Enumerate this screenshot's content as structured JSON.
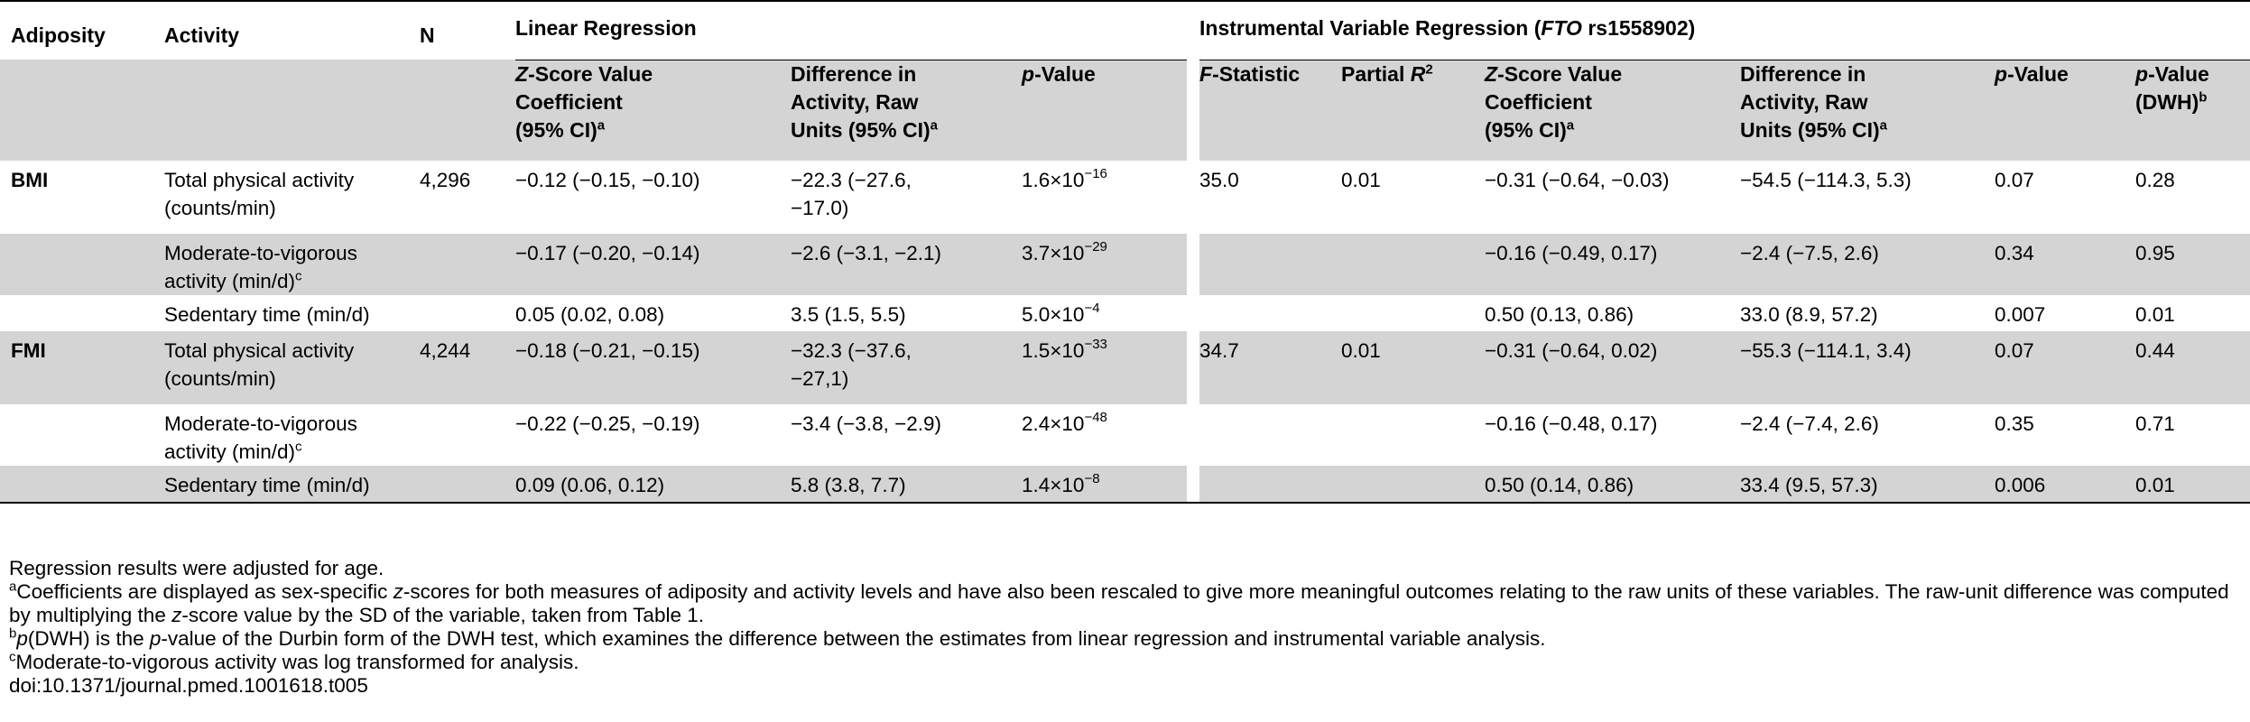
{
  "table": {
    "col_headers": {
      "adiposity": "Adiposity",
      "activity": "Activity",
      "n": "N",
      "linear_group": "Linear Regression",
      "iv_group_prefix": "Instrumental Variable Regression (",
      "iv_group_gene": "FTO",
      "iv_group_suffix": " rs1558902)",
      "lr_z_line1_italic": "Z",
      "lr_z_line1_rest": "-Score Value",
      "lr_z_line2": "Coefficient",
      "lr_z_line3": "(95% CI)",
      "lr_z_sup": "a",
      "lr_diff_line1": "Difference in",
      "lr_diff_line2": "Activity, Raw",
      "lr_diff_line3": "Units (95% CI)",
      "lr_diff_sup": "a",
      "lr_p_italic": "p",
      "lr_p_rest": "-Value",
      "f_italic": "F",
      "f_rest": "-Statistic",
      "partial_r2_text": "Partial ",
      "partial_r2_italic": "R",
      "partial_r2_sup": "2",
      "iv_z_line1_italic": "Z",
      "iv_z_line1_rest": "-Score Value",
      "iv_z_line2": "Coefficient",
      "iv_z_line3": "(95% CI)",
      "iv_z_sup": "a",
      "iv_diff_line1": "Difference in",
      "iv_diff_line2": "Activity, Raw",
      "iv_diff_line3": "Units (95% CI)",
      "iv_diff_sup": "a",
      "iv_p_italic": "p",
      "iv_p_rest": "-Value",
      "dwh_line1_italic": "p",
      "dwh_line1_rest": "-Value",
      "dwh_line2": "(DWH)",
      "dwh_sup": "b"
    },
    "rows": [
      {
        "adiposity": "BMI",
        "activity_l1": "Total physical activity",
        "activity_l2": "(counts/min)",
        "activity_sup": "",
        "n": "4,296",
        "lr_z": "−0.12 (−0.15, −0.10)",
        "lr_diff_l1": "−22.3 (−27.6,",
        "lr_diff_l2": "−17.0)",
        "lr_p_base": "1.6×10",
        "lr_p_exp": "−16",
        "f": "35.0",
        "r2": "0.01",
        "iv_z": "−0.31 (−0.64, −0.03)",
        "iv_diff": "−54.5 (−114.3, 5.3)",
        "iv_p": "0.07",
        "dwh": "0.28"
      },
      {
        "adiposity": "",
        "activity_l1": "Moderate-to-vigorous",
        "activity_l2": "activity (min/d)",
        "activity_sup": "c",
        "n": "",
        "lr_z": "−0.17 (−0.20, −0.14)",
        "lr_diff_l1": "−2.6 (−3.1, −2.1)",
        "lr_diff_l2": "",
        "lr_p_base": "3.7×10",
        "lr_p_exp": "−29",
        "f": "",
        "r2": "",
        "iv_z": "−0.16 (−0.49, 0.17)",
        "iv_diff": "−2.4 (−7.5, 2.6)",
        "iv_p": "0.34",
        "dwh": "0.95"
      },
      {
        "adiposity": "",
        "activity_l1": "Sedentary time (min/d)",
        "activity_l2": "",
        "activity_sup": "",
        "n": "",
        "lr_z": "0.05 (0.02, 0.08)",
        "lr_diff_l1": "3.5 (1.5, 5.5)",
        "lr_diff_l2": "",
        "lr_p_base": "5.0×10",
        "lr_p_exp": "−4",
        "f": "",
        "r2": "",
        "iv_z": "0.50 (0.13, 0.86)",
        "iv_diff": "33.0 (8.9, 57.2)",
        "iv_p": "0.007",
        "dwh": "0.01"
      },
      {
        "adiposity": "FMI",
        "activity_l1": "Total physical activity",
        "activity_l2": "(counts/min)",
        "activity_sup": "",
        "n": "4,244",
        "lr_z": "−0.18 (−0.21, −0.15)",
        "lr_diff_l1": "−32.3 (−37.6,",
        "lr_diff_l2": "−27,1)",
        "lr_p_base": "1.5×10",
        "lr_p_exp": "−33",
        "f": "34.7",
        "r2": "0.01",
        "iv_z": "−0.31 (−0.64, 0.02)",
        "iv_diff": "−55.3 (−114.1, 3.4)",
        "iv_p": "0.07",
        "dwh": "0.44"
      },
      {
        "adiposity": "",
        "activity_l1": "Moderate-to-vigorous",
        "activity_l2": "activity (min/d)",
        "activity_sup": "c",
        "n": "",
        "lr_z": "−0.22 (−0.25, −0.19)",
        "lr_diff_l1": "−3.4 (−3.8, −2.9)",
        "lr_diff_l2": "",
        "lr_p_base": "2.4×10",
        "lr_p_exp": "−48",
        "f": "",
        "r2": "",
        "iv_z": "−0.16 (−0.48, 0.17)",
        "iv_diff": "−2.4 (−7.4, 2.6)",
        "iv_p": "0.35",
        "dwh": "0.71"
      },
      {
        "adiposity": "",
        "activity_l1": "Sedentary time (min/d)",
        "activity_l2": "",
        "activity_sup": "",
        "n": "",
        "lr_z": "0.09 (0.06, 0.12)",
        "lr_diff_l1": "5.8 (3.8, 7.7)",
        "lr_diff_l2": "",
        "lr_p_base": "1.4×10",
        "lr_p_exp": "−8",
        "f": "",
        "r2": "",
        "iv_z": "0.50 (0.14, 0.86)",
        "iv_diff": "33.4 (9.5, 57.3)",
        "iv_p": "0.006",
        "dwh": "0.01"
      }
    ]
  },
  "footnotes": {
    "adjusted": "Regression results were adjusted for age.",
    "a_sup": "a",
    "a_part1": "Coefficients are displayed as sex-specific ",
    "a_italic1": "z",
    "a_part2": "-scores for both measures of adiposity and activity levels and have also been rescaled to give more meaningful outcomes relating to the raw units of these variables. The raw-unit difference was computed by multiplying the ",
    "a_italic2": "z",
    "a_part3": "-score value by the SD of the variable, taken from Table 1.",
    "b_sup": "b",
    "b_italic1": "p",
    "b_part1": "(DWH) is the ",
    "b_italic2": "p",
    "b_part2": "-value of the Durbin form of the DWH test, which examines the difference between the estimates from linear regression and instrumental variable analysis.",
    "c_sup": "c",
    "c_text": "Moderate-to-vigorous activity was log transformed for analysis.",
    "doi": "doi:10.1371/journal.pmed.1001618.t005"
  },
  "colors": {
    "row_shade": "#d4d4d4",
    "rule": "#000000",
    "background": "#ffffff"
  }
}
